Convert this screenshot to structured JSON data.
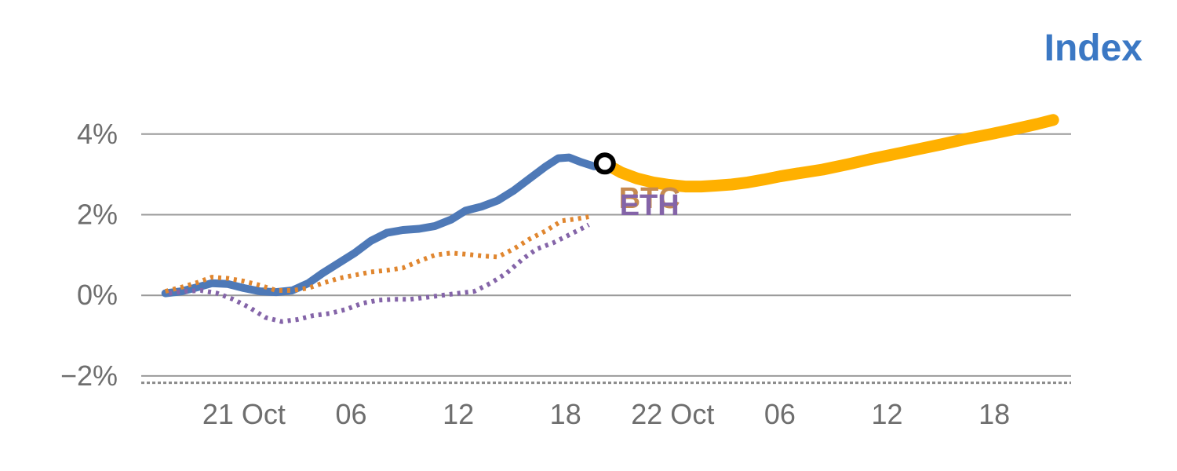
{
  "chart_data": {
    "type": "line",
    "title": "Index",
    "title_color": "#3b78c4",
    "tick_color": "#6e6e6e",
    "grid_color": "#9a9a9a",
    "grid": true,
    "legend_position": "none",
    "xlim": [
      -5.75,
      46.3
    ],
    "ylim": [
      -2.45,
      4.6
    ],
    "ytick_values": [
      4,
      2,
      0,
      -2
    ],
    "ytick_labels": [
      "4%",
      "2%",
      "0%",
      "−2%"
    ],
    "xtick_positions": [
      0,
      6,
      12,
      18,
      24,
      30,
      36,
      42
    ],
    "xtick_labels": [
      "21 Oct",
      "06",
      "12",
      "18",
      "22 Oct",
      "06",
      "12",
      "18"
    ],
    "baseline_dashed_y": -2.17,
    "series": [
      {
        "key": "index-history-line",
        "name": "Index",
        "color": "#4e79b7",
        "width": 10,
        "dash": null,
        "x": [
          -4.4,
          -3.5,
          -2.6,
          -1.8,
          -0.9,
          0,
          0.9,
          1.8,
          2.7,
          3.6,
          4.4,
          5.3,
          6.2,
          7.1,
          8.0,
          8.9,
          9.8,
          10.7,
          11.6,
          12.4,
          13.3,
          14.2,
          15.1,
          16.0,
          16.9,
          17.6,
          18.2,
          18.9,
          19.6,
          20.2
        ],
        "y": [
          0.05,
          0.1,
          0.2,
          0.3,
          0.28,
          0.18,
          0.1,
          0.08,
          0.12,
          0.3,
          0.55,
          0.8,
          1.05,
          1.35,
          1.55,
          1.62,
          1.65,
          1.72,
          1.88,
          2.1,
          2.2,
          2.35,
          2.6,
          2.9,
          3.2,
          3.4,
          3.42,
          3.3,
          3.2,
          3.27
        ]
      },
      {
        "key": "index-forecast-line",
        "name": "Index",
        "color": "#ffb000",
        "width": 15,
        "dash": null,
        "x": [
          20.2,
          21.1,
          22.0,
          22.9,
          23.8,
          24.7,
          25.6,
          26.4,
          27.3,
          28.2,
          29.1,
          30.0,
          31.1,
          32.4,
          33.8,
          35.1,
          36.4,
          37.8,
          39.1,
          40.4,
          41.8,
          43.1,
          44.4,
          45.3
        ],
        "y": [
          3.27,
          3.05,
          2.9,
          2.8,
          2.74,
          2.7,
          2.7,
          2.72,
          2.75,
          2.8,
          2.87,
          2.95,
          3.03,
          3.12,
          3.25,
          3.38,
          3.5,
          3.63,
          3.75,
          3.88,
          4.0,
          4.12,
          4.25,
          4.35
        ]
      },
      {
        "key": "btc-line",
        "name": "BTC",
        "color": "#e0862f",
        "width": 6,
        "dash": "4 6",
        "x": [
          -4.4,
          -3.5,
          -2.6,
          -1.8,
          -0.9,
          0,
          0.9,
          1.8,
          2.7,
          3.6,
          4.4,
          5.3,
          6.2,
          7.1,
          8.0,
          8.9,
          9.8,
          10.7,
          11.6,
          12.4,
          13.3,
          14.2,
          15.1,
          16.0,
          16.9,
          17.8,
          18.7,
          19.3
        ],
        "y": [
          0.1,
          0.2,
          0.32,
          0.45,
          0.42,
          0.35,
          0.25,
          0.12,
          0.12,
          0.18,
          0.3,
          0.42,
          0.5,
          0.58,
          0.62,
          0.68,
          0.85,
          1.0,
          1.05,
          1.02,
          0.98,
          0.95,
          1.15,
          1.4,
          1.6,
          1.85,
          1.9,
          1.95
        ]
      },
      {
        "key": "eth-line",
        "name": "ETH",
        "color": "#8464a8",
        "width": 6,
        "dash": "4 6",
        "x": [
          -4.2,
          -3.3,
          -2.4,
          -1.5,
          -0.6,
          0.3,
          1.2,
          2.1,
          3.0,
          3.9,
          4.8,
          5.7,
          6.6,
          7.5,
          8.4,
          9.3,
          10.2,
          11.1,
          12.0,
          12.9,
          13.8,
          14.7,
          15.6,
          16.4,
          17.3,
          18.2,
          19.1,
          19.3
        ],
        "y": [
          0.05,
          0.1,
          0.12,
          0.05,
          -0.1,
          -0.3,
          -0.55,
          -0.65,
          -0.6,
          -0.5,
          -0.45,
          -0.35,
          -0.2,
          -0.12,
          -0.1,
          -0.1,
          -0.05,
          0.0,
          0.05,
          0.1,
          0.3,
          0.55,
          0.9,
          1.15,
          1.3,
          1.5,
          1.7,
          1.75
        ]
      }
    ],
    "marker": {
      "x": 20.2,
      "y": 3.27,
      "fill": "#ffffff",
      "stroke": "#000000"
    },
    "annotations": [
      {
        "text": "BTC",
        "x": 22.7,
        "y": 2.42,
        "color": "#c68a50"
      },
      {
        "text": "ETH",
        "x": 22.7,
        "y": 2.24,
        "color": "#8464a8"
      }
    ]
  }
}
